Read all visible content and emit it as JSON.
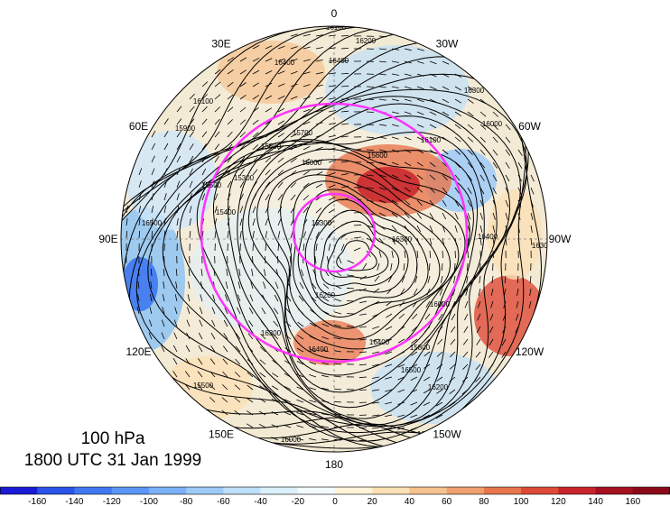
{
  "title": {
    "level": "100 hPa",
    "time": "1800 UTC 31 Jan 1999"
  },
  "longitude_labels": [
    {
      "text": "0",
      "bearing": 0
    },
    {
      "text": "30W",
      "bearing": 30
    },
    {
      "text": "60W",
      "bearing": 60
    },
    {
      "text": "90W",
      "bearing": 90
    },
    {
      "text": "120W",
      "bearing": 120
    },
    {
      "text": "150W",
      "bearing": 150
    },
    {
      "text": "180",
      "bearing": 180
    },
    {
      "text": "150E",
      "bearing": 210
    },
    {
      "text": "120E",
      "bearing": 240
    },
    {
      "text": "90E",
      "bearing": 270
    },
    {
      "text": "60E",
      "bearing": 300
    },
    {
      "text": "30E",
      "bearing": 330
    }
  ],
  "contour_labels": [
    "16100",
    "16200",
    "16400",
    "16400",
    "16300",
    "16100",
    "16000",
    "15900",
    "15700",
    "15800",
    "15300",
    "16100",
    "16000",
    "15600",
    "15500",
    "15400",
    "15300",
    "16300",
    "16200",
    "16400",
    "16400",
    "16500",
    "16200",
    "16300",
    "15500",
    "16000",
    "16200",
    "16300",
    "16400",
    "16500",
    "16000",
    "15800"
  ],
  "colorbar": {
    "ticks": [
      "-160",
      "-140",
      "-120",
      "-100",
      "-80",
      "-60",
      "-40",
      "-20",
      "0",
      "20",
      "40",
      "60",
      "80",
      "100",
      "120",
      "140",
      "160"
    ],
    "colors": [
      "#1a1ad6",
      "#2a54e8",
      "#3f78f0",
      "#5a96f5",
      "#7bb2f7",
      "#9dcbf8",
      "#bfe0f9",
      "#dcf0fb",
      "#f3fafd",
      "#fff3d8",
      "#fbe0b5",
      "#f6c28e",
      "#f0a06e",
      "#e8764d",
      "#dd4a37",
      "#c9232b",
      "#a4101f",
      "#8b0a1a"
    ]
  },
  "map_colors": {
    "contour": "#000000",
    "rings": "#ff33ff",
    "ocean_tint": "#f7f2e6"
  }
}
